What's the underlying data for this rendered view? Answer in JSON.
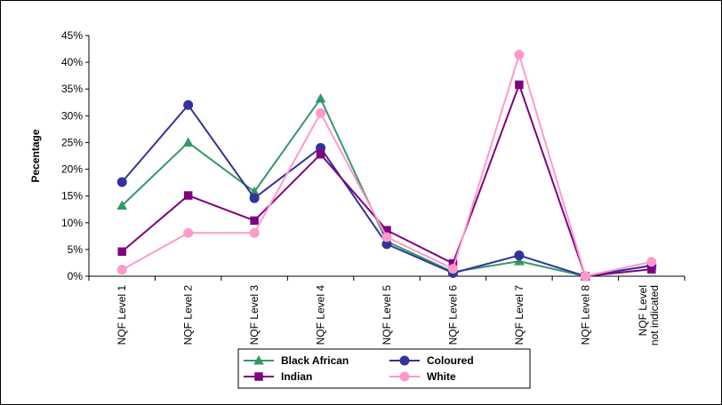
{
  "chart_data": {
    "type": "line",
    "title": "",
    "xlabel": "",
    "ylabel": "Pecentage",
    "ylim": [
      0,
      45
    ],
    "yticks": [
      "0%",
      "5%",
      "10%",
      "15%",
      "20%",
      "25%",
      "30%",
      "35%",
      "40%",
      "45%"
    ],
    "grid": false,
    "legend_position": "bottom",
    "categories": [
      "NQF Level 1",
      "NQF Level 2",
      "NQF Level 3",
      "NQF Level 4",
      "NQF Level 5",
      "NQF Level 6",
      "NQF Level 7",
      "NQF Level 8",
      "NQF Level not indicated"
    ],
    "series": [
      {
        "name": "Black African",
        "color": "#339966",
        "marker": "triangle",
        "values": [
          13.2,
          25.0,
          15.8,
          33.2,
          6.5,
          0.8,
          2.8,
          0.0,
          2.0
        ]
      },
      {
        "name": "Coloured",
        "color": "#333399",
        "marker": "circle",
        "values": [
          17.6,
          32.0,
          14.6,
          24.0,
          6.0,
          0.6,
          3.9,
          0.0,
          2.0
        ]
      },
      {
        "name": "Indian",
        "color": "#800080",
        "marker": "square",
        "values": [
          4.6,
          15.1,
          10.4,
          22.8,
          8.6,
          2.4,
          35.8,
          0.0,
          1.3
        ]
      },
      {
        "name": "White",
        "color": "#FF99CC",
        "marker": "circle",
        "values": [
          1.2,
          8.1,
          8.1,
          30.5,
          7.3,
          1.4,
          41.4,
          0.0,
          2.7
        ]
      }
    ]
  }
}
